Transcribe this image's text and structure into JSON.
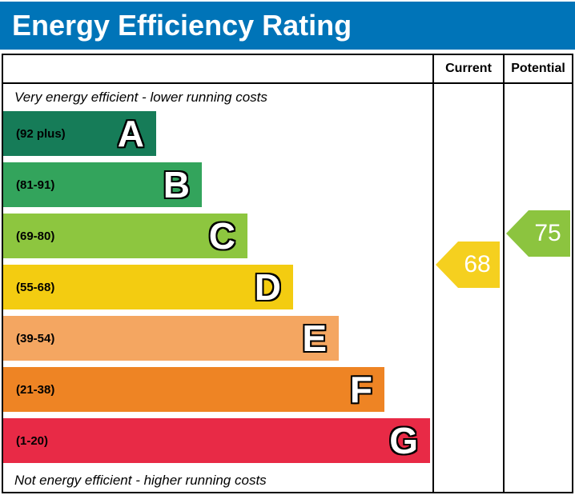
{
  "title": "Energy Efficiency Rating",
  "colors": {
    "title_bar": "#0074b8",
    "title_text": "#ffffff",
    "border": "#000000"
  },
  "table": {
    "columns": {
      "current": "Current",
      "potential": "Potential"
    },
    "top_note": "Very energy efficient - lower running costs",
    "bottom_note": "Not energy efficient - higher running costs"
  },
  "bands": [
    {
      "letter": "A",
      "range": "(92 plus)",
      "color": "#167c58"
    },
    {
      "letter": "B",
      "range": "(81-91)",
      "color": "#33a45c"
    },
    {
      "letter": "C",
      "range": "(69-80)",
      "color": "#8dc63f"
    },
    {
      "letter": "D",
      "range": "(55-68)",
      "color": "#f3cc11"
    },
    {
      "letter": "E",
      "range": "(39-54)",
      "color": "#f4a661"
    },
    {
      "letter": "F",
      "range": "(21-38)",
      "color": "#ee8424"
    },
    {
      "letter": "G",
      "range": "(1-20)",
      "color": "#e82a46"
    }
  ],
  "current": {
    "value": "68",
    "color": "#f5d01f",
    "band": "D"
  },
  "potential": {
    "value": "75",
    "color": "#8cc43f",
    "band": "C"
  },
  "chart_data": {
    "type": "bar",
    "title": "Energy Efficiency Rating",
    "categories": [
      "A",
      "B",
      "C",
      "D",
      "E",
      "F",
      "G"
    ],
    "band_ranges": [
      "92 plus",
      "81-91",
      "69-80",
      "55-68",
      "39-54",
      "21-38",
      "1-20"
    ],
    "band_colors": [
      "#167c58",
      "#33a45c",
      "#8dc63f",
      "#f3cc11",
      "#f4a661",
      "#ee8424",
      "#e82a46"
    ],
    "bar_relative_lengths": [
      0.36,
      0.46,
      0.57,
      0.68,
      0.78,
      0.89,
      1.0
    ],
    "series": [
      {
        "name": "Current",
        "value": 68,
        "band": "D",
        "marker_color": "#f5d01f"
      },
      {
        "name": "Potential",
        "value": 75,
        "band": "C",
        "marker_color": "#8cc43f"
      }
    ],
    "xlabel": "",
    "ylabel": "",
    "value_range": [
      1,
      100
    ],
    "annotations": [
      "Very energy efficient - lower running costs",
      "Not energy efficient - higher running costs"
    ],
    "legend_position": "none",
    "grid": false
  }
}
